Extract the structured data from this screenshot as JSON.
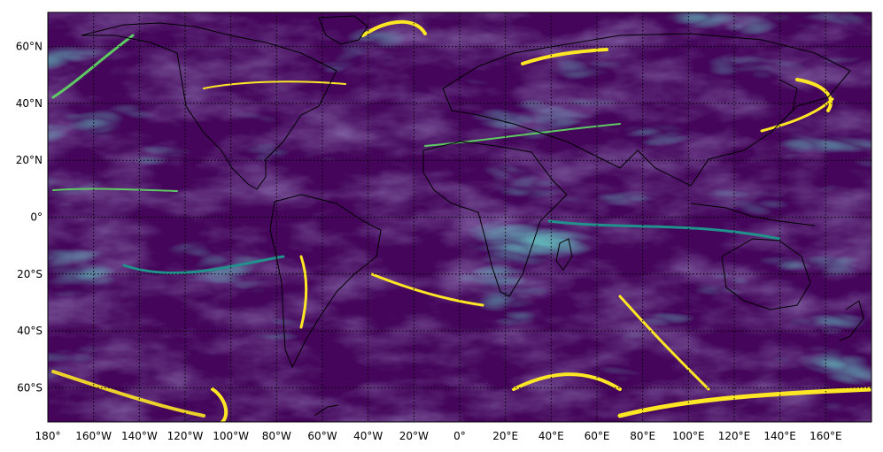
{
  "map": {
    "projection": "equirectangular",
    "lon_range": [
      -180,
      180
    ],
    "lat_range": [
      -72,
      72
    ],
    "grid": "dotted",
    "colormap": "viridis",
    "colormap_stops": [
      "#440154",
      "#3b528b",
      "#21918c",
      "#5ec962",
      "#fde725"
    ],
    "coastlines": true,
    "borders": true,
    "lat_ticks": [
      {
        "value": 60,
        "label": "60°N"
      },
      {
        "value": 40,
        "label": "40°N"
      },
      {
        "value": 20,
        "label": "20°N"
      },
      {
        "value": 0,
        "label": "0°"
      },
      {
        "value": -20,
        "label": "20°S"
      },
      {
        "value": -40,
        "label": "40°S"
      },
      {
        "value": -60,
        "label": "60°S"
      }
    ],
    "lon_ticks": [
      {
        "value": -180,
        "label": "180°"
      },
      {
        "value": -160,
        "label": "160°W"
      },
      {
        "value": -140,
        "label": "140°W"
      },
      {
        "value": -120,
        "label": "120°W"
      },
      {
        "value": -100,
        "label": "100°W"
      },
      {
        "value": -80,
        "label": "80°W"
      },
      {
        "value": -60,
        "label": "60°W"
      },
      {
        "value": -40,
        "label": "40°W"
      },
      {
        "value": -20,
        "label": "20°W"
      },
      {
        "value": 0,
        "label": "0°"
      },
      {
        "value": 20,
        "label": "20°E"
      },
      {
        "value": 40,
        "label": "40°E"
      },
      {
        "value": 60,
        "label": "60°E"
      },
      {
        "value": 80,
        "label": "80°E"
      },
      {
        "value": 100,
        "label": "100°E"
      },
      {
        "value": 120,
        "label": "120°E"
      },
      {
        "value": 140,
        "label": "140°E"
      },
      {
        "value": 160,
        "label": "160°E"
      }
    ]
  }
}
